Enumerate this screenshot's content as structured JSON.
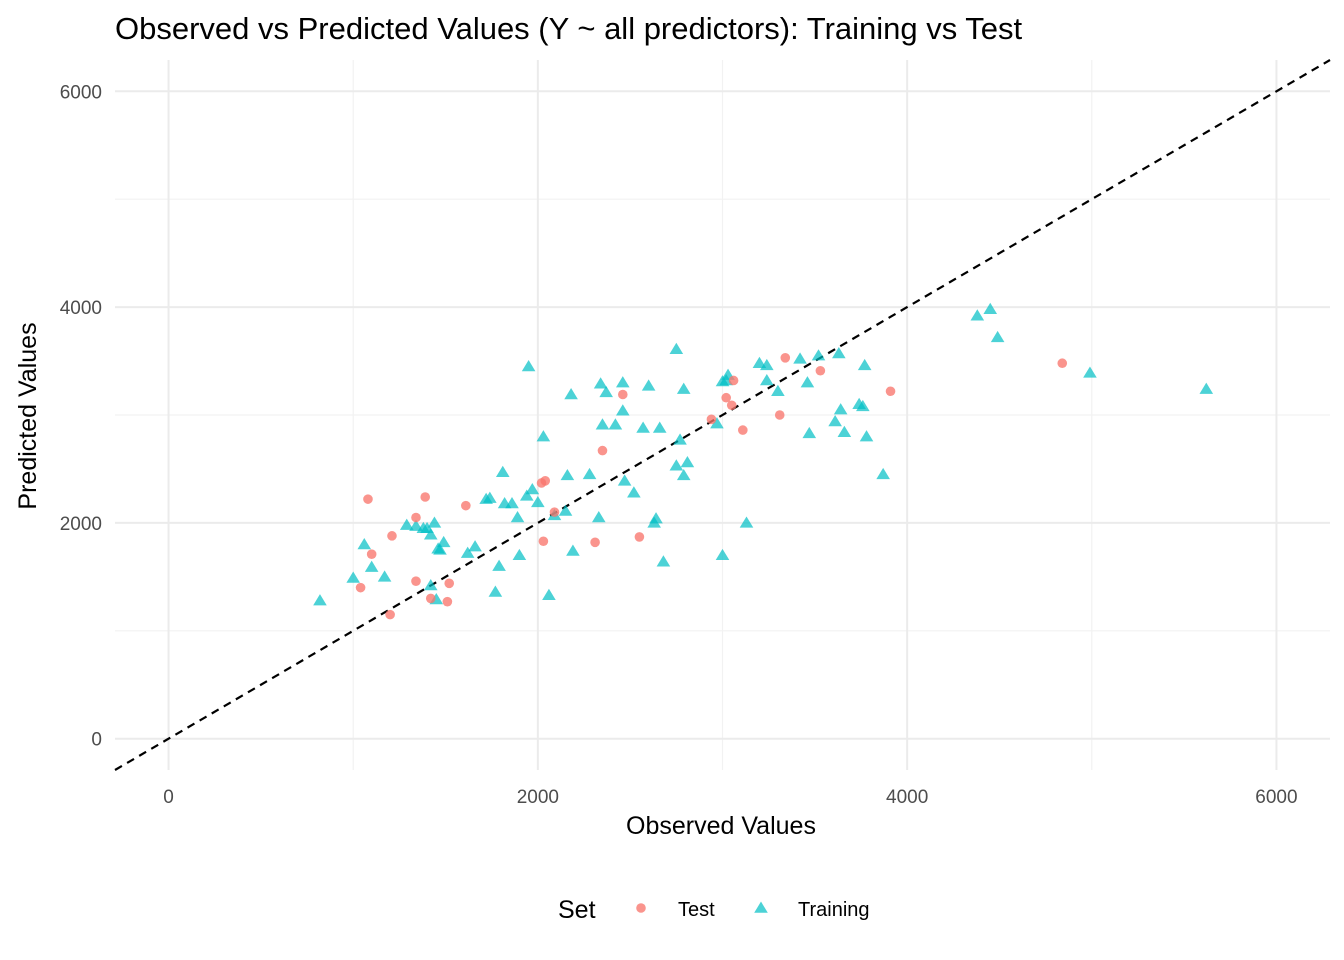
{
  "chart_data": {
    "type": "scatter",
    "title": "Observed vs Predicted Values (Y ~ all predictors): Training vs Test",
    "xlabel": "Observed Values",
    "ylabel": "Predicted Values",
    "xlim": [
      -290,
      6290
    ],
    "ylim": [
      -290,
      6290
    ],
    "x_ticks": [
      0,
      2000,
      4000,
      6000
    ],
    "y_ticks": [
      0,
      2000,
      4000,
      6000
    ],
    "x_tick_labels": [
      "0",
      "2000",
      "4000",
      "6000"
    ],
    "y_tick_labels": [
      "0",
      "2000",
      "4000",
      "6000"
    ],
    "grid": true,
    "reference_line": {
      "slope": 1,
      "intercept": 0,
      "style": "dashed",
      "color": "#000000"
    },
    "legend": {
      "title": "Set",
      "position": "bottom"
    },
    "series": [
      {
        "name": "Test",
        "marker": "circle",
        "color": "#F8766D",
        "points": [
          [
            1080,
            2220
          ],
          [
            1390,
            2240
          ],
          [
            1100,
            1710
          ],
          [
            1210,
            1880
          ],
          [
            1340,
            2050
          ],
          [
            1040,
            1400
          ],
          [
            1200,
            1150
          ],
          [
            1340,
            1460
          ],
          [
            1420,
            1300
          ],
          [
            1520,
            1440
          ],
          [
            1510,
            1270
          ],
          [
            1610,
            2160
          ],
          [
            2020,
            2370
          ],
          [
            2040,
            2390
          ],
          [
            2030,
            1830
          ],
          [
            2090,
            2100
          ],
          [
            2310,
            1820
          ],
          [
            2350,
            2670
          ],
          [
            2460,
            3190
          ],
          [
            2550,
            1870
          ],
          [
            2940,
            2960
          ],
          [
            3020,
            3160
          ],
          [
            3050,
            3090
          ],
          [
            3060,
            3320
          ],
          [
            3110,
            2860
          ],
          [
            3310,
            3000
          ],
          [
            3340,
            3530
          ],
          [
            3530,
            3410
          ],
          [
            3910,
            3220
          ],
          [
            4840,
            3480
          ]
        ]
      },
      {
        "name": "Training",
        "marker": "triangle",
        "color": "#00BFC4",
        "points": [
          [
            820,
            1280
          ],
          [
            1000,
            1490
          ],
          [
            1060,
            1800
          ],
          [
            1100,
            1590
          ],
          [
            1170,
            1500
          ],
          [
            1290,
            1980
          ],
          [
            1340,
            1970
          ],
          [
            1380,
            1950
          ],
          [
            1400,
            1950
          ],
          [
            1420,
            1890
          ],
          [
            1440,
            2000
          ],
          [
            1420,
            1420
          ],
          [
            1450,
            1290
          ],
          [
            1460,
            1760
          ],
          [
            1470,
            1750
          ],
          [
            1490,
            1820
          ],
          [
            1620,
            1720
          ],
          [
            1660,
            1780
          ],
          [
            1720,
            2220
          ],
          [
            1740,
            2230
          ],
          [
            1770,
            1360
          ],
          [
            1790,
            1600
          ],
          [
            1810,
            2470
          ],
          [
            1820,
            2180
          ],
          [
            1860,
            2180
          ],
          [
            1890,
            2050
          ],
          [
            1900,
            1700
          ],
          [
            1940,
            2250
          ],
          [
            1950,
            3450
          ],
          [
            1970,
            2310
          ],
          [
            2000,
            2190
          ],
          [
            2030,
            2800
          ],
          [
            2060,
            1330
          ],
          [
            2090,
            2070
          ],
          [
            2150,
            2110
          ],
          [
            2160,
            2440
          ],
          [
            2180,
            3190
          ],
          [
            2190,
            1740
          ],
          [
            2280,
            2450
          ],
          [
            2330,
            2050
          ],
          [
            2340,
            3290
          ],
          [
            2350,
            2910
          ],
          [
            2370,
            3210
          ],
          [
            2420,
            2910
          ],
          [
            2460,
            3300
          ],
          [
            2460,
            3040
          ],
          [
            2470,
            2390
          ],
          [
            2520,
            2280
          ],
          [
            2570,
            2880
          ],
          [
            2600,
            3270
          ],
          [
            2630,
            2000
          ],
          [
            2640,
            2040
          ],
          [
            2660,
            2880
          ],
          [
            2680,
            1640
          ],
          [
            2750,
            3610
          ],
          [
            2750,
            2530
          ],
          [
            2770,
            2770
          ],
          [
            2790,
            3240
          ],
          [
            2790,
            2440
          ],
          [
            2810,
            2560
          ],
          [
            2970,
            2920
          ],
          [
            3000,
            3310
          ],
          [
            3020,
            3320
          ],
          [
            3030,
            3370
          ],
          [
            3000,
            1700
          ],
          [
            3130,
            2000
          ],
          [
            3200,
            3480
          ],
          [
            3240,
            3460
          ],
          [
            3240,
            3320
          ],
          [
            3300,
            3220
          ],
          [
            3420,
            3520
          ],
          [
            3460,
            3300
          ],
          [
            3470,
            2830
          ],
          [
            3520,
            3550
          ],
          [
            3610,
            2940
          ],
          [
            3630,
            3570
          ],
          [
            3640,
            3050
          ],
          [
            3660,
            2840
          ],
          [
            3740,
            3100
          ],
          [
            3760,
            3080
          ],
          [
            3770,
            3460
          ],
          [
            3780,
            2800
          ],
          [
            3870,
            2450
          ],
          [
            4380,
            3920
          ],
          [
            4450,
            3980
          ],
          [
            4490,
            3720
          ],
          [
            4990,
            3390
          ],
          [
            5620,
            3240
          ]
        ]
      }
    ]
  }
}
